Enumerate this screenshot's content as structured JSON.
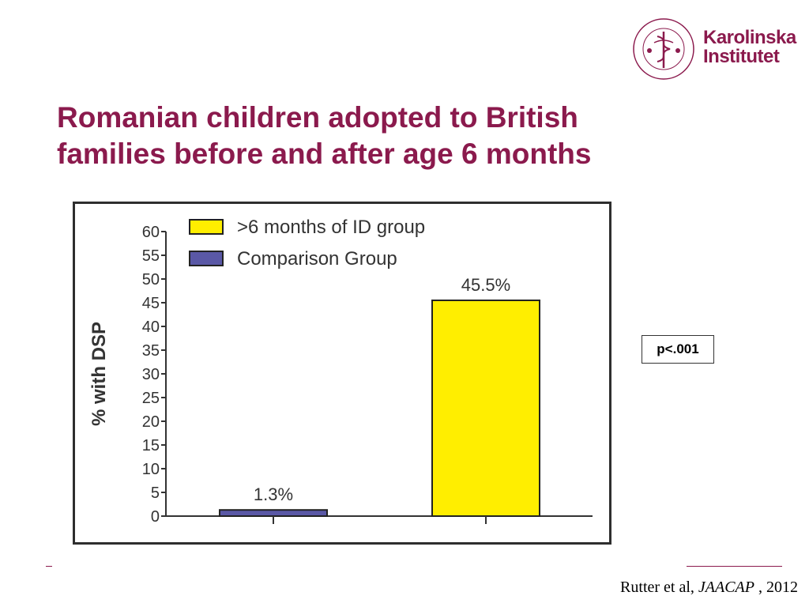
{
  "logo": {
    "name_line1": "Karolinska",
    "name_line2": "Institutet",
    "seal_text": "KAROLINSKA INSTITUTET • ANNO 1810",
    "brand_color": "#8b1a4d"
  },
  "slide": {
    "title_line1": "Romanian children adopted to British",
    "title_line2": "families before and after age 6 months",
    "p_value": "p<.001",
    "citation_authors": "Rutter et al, ",
    "citation_journal": "JAACAP",
    "citation_year": " , 2012"
  },
  "chart_data": {
    "type": "bar",
    "ylabel": "% with DSP",
    "xlabel": "",
    "ylim": [
      0,
      60
    ],
    "yticks": [
      0,
      5,
      10,
      15,
      20,
      25,
      30,
      35,
      40,
      45,
      50,
      55,
      60
    ],
    "grid": false,
    "legend_placement": "top-left",
    "series": [
      {
        "name": "Comparison Group",
        "value": 1.3,
        "label": "1.3%",
        "color": "#5a58a6"
      },
      {
        "name": ">6 months of ID group",
        "value": 45.5,
        "label": "45.5%",
        "color": "#ffee00"
      }
    ],
    "legend": [
      {
        "name": ">6 months of ID group",
        "color": "#ffee00"
      },
      {
        "name": "Comparison Group",
        "color": "#5a58a6"
      }
    ]
  }
}
